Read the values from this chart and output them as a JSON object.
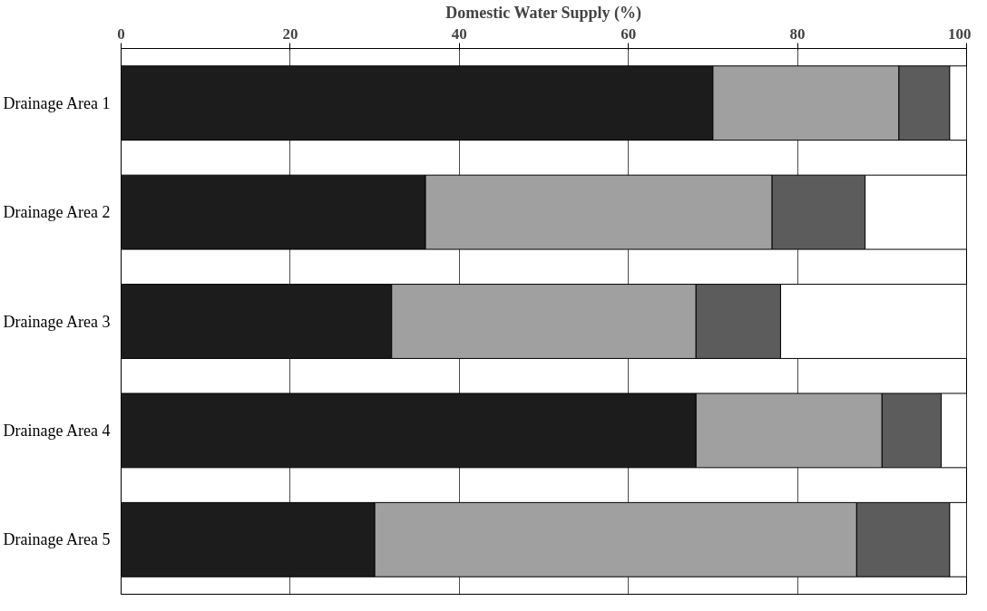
{
  "chart_data": {
    "type": "bar",
    "orientation": "horizontal",
    "stacked": true,
    "xlabel": "Domestic Water Supply (%)",
    "categories": [
      "Drainage Area 1",
      "Drainage Area 2",
      "Drainage Area 3",
      "Drainage Area 4",
      "Drainage Area 5"
    ],
    "series": [
      {
        "color": "#1c1c1c",
        "values": [
          70,
          36,
          32,
          68,
          30
        ]
      },
      {
        "color": "#a0a0a0",
        "values": [
          22,
          41,
          36,
          22,
          57
        ]
      },
      {
        "color": "#5c5c5c",
        "values": [
          6,
          11,
          10,
          7,
          11
        ]
      },
      {
        "color": "#ffffff",
        "values": [
          2,
          12,
          22,
          3,
          2
        ]
      }
    ],
    "xlim": [
      0,
      100
    ],
    "xticks": [
      0,
      20,
      40,
      60,
      80,
      100
    ],
    "grid": "x"
  }
}
